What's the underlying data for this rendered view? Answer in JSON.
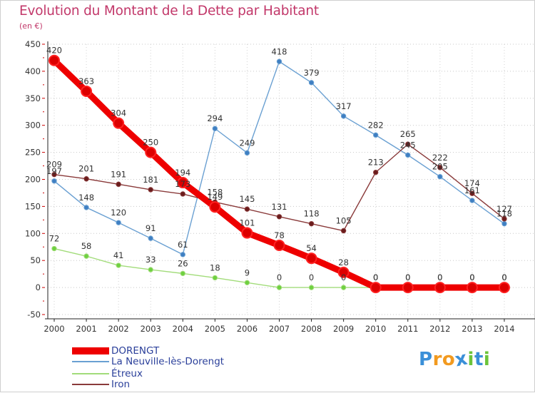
{
  "header": {
    "title": "Evolution du Montant de la Dette par Habitant",
    "unit": "(en €)"
  },
  "chart_data": {
    "type": "line",
    "title": "Evolution du Montant de la Dette par Habitant",
    "ylabel": "(en €)",
    "xlabel": "",
    "ylim": [
      -50,
      450
    ],
    "yticks": [
      -50,
      0,
      50,
      100,
      150,
      200,
      250,
      300,
      350,
      400,
      450
    ],
    "categories": [
      "2000",
      "2001",
      "2002",
      "2003",
      "2004",
      "2005",
      "2006",
      "2007",
      "2008",
      "2009",
      "2010",
      "2011",
      "2012",
      "2013",
      "2014"
    ],
    "series": [
      {
        "name": "DORENGT",
        "color": "#ee0000",
        "marker_fill": "#dd0000",
        "marker_edge": "#ff2222",
        "values": [
          420,
          363,
          304,
          250,
          194,
          149,
          101,
          78,
          54,
          28,
          0,
          0,
          0,
          0,
          0
        ]
      },
      {
        "name": "La Neuville-lès-Dorengt",
        "color": "#6aa0d2",
        "marker_fill": "#3f7fc2",
        "marker_edge": "#6aa0d2",
        "values": [
          197,
          148,
          120,
          91,
          61,
          294,
          249,
          418,
          379,
          317,
          282,
          245,
          205,
          161,
          118
        ]
      },
      {
        "name": "Étreux",
        "color": "#a2dc7a",
        "marker_fill": "#6ed040",
        "marker_edge": "#a2dc7a",
        "values": [
          72,
          58,
          41,
          33,
          26,
          18,
          9,
          0,
          0,
          0,
          0,
          0,
          0,
          0,
          0
        ]
      },
      {
        "name": "Iron",
        "color": "#8a3a3a",
        "marker_fill": "#6a1c1c",
        "marker_edge": "#8a3a3a",
        "values": [
          209,
          201,
          191,
          181,
          173,
          158,
          145,
          131,
          118,
          105,
          213,
          265,
          222,
          174,
          127
        ]
      }
    ]
  },
  "legend": {
    "items": [
      {
        "label": "DORENGT",
        "color": "#ee0000"
      },
      {
        "label": "La Neuville-lès-Dorengt",
        "color": "#6aa0d2"
      },
      {
        "label": "Étreux",
        "color": "#a2dc7a"
      },
      {
        "label": "Iron",
        "color": "#8a3a3a"
      }
    ]
  },
  "brand": {
    "logo_text": "Proxiti",
    "letter_colors": [
      "#3a8fd8",
      "#f29a1f",
      "#f29a1f",
      "#3a8fd8",
      "#6cc43a",
      "#3a8fd8",
      "#6cc43a"
    ]
  }
}
